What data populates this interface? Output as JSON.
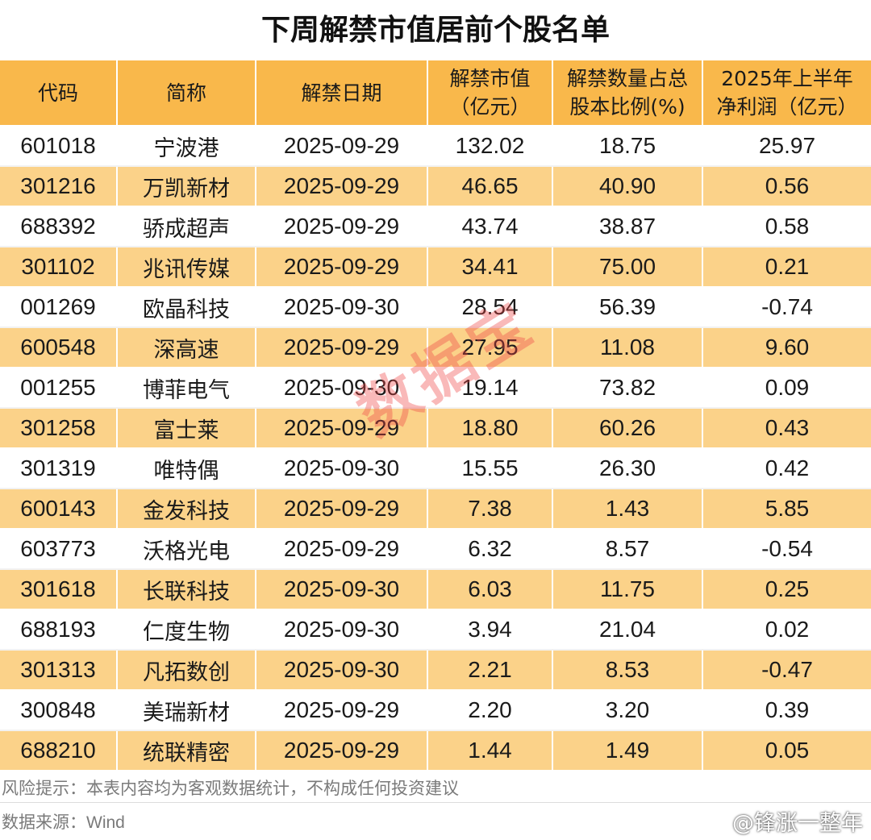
{
  "title": "下周解禁市值居前个股名单",
  "headers": [
    [
      "代码"
    ],
    [
      "简称"
    ],
    [
      "解禁日期"
    ],
    [
      "解禁市值",
      "（亿元）"
    ],
    [
      "解禁数量占总",
      "股本比例(%)"
    ],
    [
      "2025年上半年",
      "净利润（亿元）"
    ]
  ],
  "rows": [
    [
      "601018",
      "宁波港",
      "2025-09-29",
      "132.02",
      "18.75",
      "25.97"
    ],
    [
      "301216",
      "万凯新材",
      "2025-09-29",
      "46.65",
      "40.90",
      "0.56"
    ],
    [
      "688392",
      "骄成超声",
      "2025-09-29",
      "43.74",
      "38.87",
      "0.58"
    ],
    [
      "301102",
      "兆讯传媒",
      "2025-09-29",
      "34.41",
      "75.00",
      "0.21"
    ],
    [
      "001269",
      "欧晶科技",
      "2025-09-30",
      "28.54",
      "56.39",
      "-0.74"
    ],
    [
      "600548",
      "深高速",
      "2025-09-29",
      "27.95",
      "11.08",
      "9.60"
    ],
    [
      "001255",
      "博菲电气",
      "2025-09-30",
      "19.14",
      "73.82",
      "0.09"
    ],
    [
      "301258",
      "富士莱",
      "2025-09-29",
      "18.80",
      "60.26",
      "0.43"
    ],
    [
      "301319",
      "唯特偶",
      "2025-09-30",
      "15.55",
      "26.30",
      "0.42"
    ],
    [
      "600143",
      "金发科技",
      "2025-09-29",
      "7.38",
      "1.43",
      "5.85"
    ],
    [
      "603773",
      "沃格光电",
      "2025-09-29",
      "6.32",
      "8.57",
      "-0.54"
    ],
    [
      "301618",
      "长联科技",
      "2025-09-30",
      "6.03",
      "11.75",
      "0.25"
    ],
    [
      "688193",
      "仁度生物",
      "2025-09-30",
      "3.94",
      "21.04",
      "0.02"
    ],
    [
      "301313",
      "凡拓数创",
      "2025-09-30",
      "2.21",
      "8.53",
      "-0.47"
    ],
    [
      "300848",
      "美瑞新材",
      "2025-09-29",
      "2.20",
      "3.20",
      "0.39"
    ],
    [
      "688210",
      "统联精密",
      "2025-09-29",
      "1.44",
      "1.49",
      "0.05"
    ]
  ],
  "footer": {
    "risk_note": "风险提示：本表内容均为客观数据统计，不构成任何投资建议",
    "source": "数据来源：Wind"
  },
  "watermark": "数据宝",
  "weibo_handle": "@锋涨一整年",
  "icons": {
    "weibo": "weibo-logo-icon"
  },
  "colors": {
    "header_bg": "#f9b84b",
    "stripe_bg": "#fbd289",
    "watermark": "#f04646"
  }
}
